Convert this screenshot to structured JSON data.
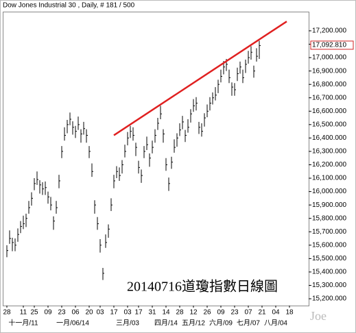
{
  "chart_data": {
    "type": "ohlc",
    "title": "Dow Jones Industrial 30 , Daily, # 181 / 500",
    "annotation": "20140716道瓊指數日線圖",
    "watermark": "Joe",
    "color": "#000000",
    "close": [
      15560,
      15650,
      15620,
      15600,
      15680,
      15740,
      15760,
      15800,
      15880,
      15950,
      16060,
      16090,
      16050,
      16020,
      16030,
      15960,
      15900,
      15780,
      15880,
      16080,
      16300,
      16420,
      16500,
      16540,
      16480,
      16450,
      16500,
      16430,
      16470,
      16420,
      16300,
      16150,
      15900,
      15760,
      15600,
      15390,
      15620,
      15720,
      15900,
      16080,
      16150,
      16120,
      16200,
      16300,
      16400,
      16450,
      16420,
      16330,
      16180,
      16120,
      16300,
      16350,
      16250,
      16330,
      16420,
      16510,
      16580,
      16430,
      16200,
      16060,
      16220,
      16330,
      16400,
      16460,
      16520,
      16420,
      16480,
      16580,
      16640,
      16660,
      16480,
      16450,
      16550,
      16600,
      16660,
      16700,
      16720,
      16800,
      16860,
      16930,
      16950,
      16850,
      16780,
      16760,
      16880,
      16930,
      16850,
      16950,
      17000,
      17040,
      16900,
      17010,
      17090
    ],
    "high": [
      15600,
      15710,
      15655,
      15650,
      15725,
      15780,
      15820,
      15835,
      15930,
      15995,
      16100,
      16150,
      16085,
      16070,
      16075,
      16000,
      15960,
      15815,
      15930,
      16125,
      16340,
      16480,
      16535,
      16590,
      16525,
      16490,
      16560,
      16465,
      16520,
      16465,
      16340,
      16210,
      15935,
      15810,
      15645,
      15430,
      15680,
      15755,
      15950,
      16125,
      16190,
      16180,
      16235,
      16350,
      16445,
      16490,
      16480,
      16365,
      16230,
      16165,
      16340,
      16410,
      16285,
      16380,
      16465,
      16550,
      16640,
      16465,
      16250,
      16105,
      16260,
      16390,
      16435,
      16510,
      16565,
      16460,
      16540,
      16615,
      16690,
      16705,
      16520,
      16510,
      16585,
      16650,
      16705,
      16740,
      16780,
      16835,
      16910,
      16975,
      16990,
      16910,
      16815,
      16810,
      16925,
      16970,
      16910,
      16985,
      17050,
      17085,
      16940,
      17070,
      17125
    ],
    "low": [
      15510,
      15610,
      15555,
      15555,
      15625,
      15690,
      15720,
      15735,
      15835,
      15895,
      16010,
      16050,
      15985,
      15975,
      15975,
      15910,
      15860,
      15715,
      15835,
      16025,
      16250,
      16380,
      16435,
      16495,
      16425,
      16400,
      16460,
      16365,
      16425,
      16365,
      16250,
      16110,
      15835,
      15715,
      15545,
      15340,
      15580,
      15655,
      15855,
      16025,
      16100,
      16080,
      16135,
      16255,
      16345,
      16400,
      16380,
      16265,
      16135,
      16065,
      16250,
      16310,
      16185,
      16285,
      16365,
      16460,
      16540,
      16365,
      16155,
      16005,
      16170,
      16290,
      16335,
      16415,
      16465,
      16370,
      16440,
      16515,
      16595,
      16605,
      16430,
      16410,
      16485,
      16555,
      16605,
      16650,
      16680,
      16735,
      16815,
      16875,
      16900,
      16810,
      16715,
      16715,
      16825,
      16880,
      16810,
      16885,
      16955,
      16985,
      16850,
      16970,
      16990
    ],
    "trendline": {
      "x": [
        39,
        102
      ],
      "y": [
        16420,
        17270
      ],
      "color": "#e02020"
    },
    "last_value": {
      "value": 17092.81,
      "label": "17,092.810",
      "color": "#d02020"
    },
    "xlim": [
      -1,
      110
    ],
    "ylim": [
      15149,
      17343
    ],
    "xticks": [
      {
        "value": 0,
        "label": "28"
      },
      {
        "value": 6,
        "label": "11"
      },
      {
        "value": 10,
        "label": "25"
      },
      {
        "value": 15,
        "label": "09"
      },
      {
        "value": 20,
        "label": "23"
      },
      {
        "value": 25,
        "label": "06"
      },
      {
        "value": 30,
        "label": "20"
      },
      {
        "value": 34,
        "label": "03"
      },
      {
        "value": 39,
        "label": "17"
      },
      {
        "value": 44,
        "label": "03"
      },
      {
        "value": 48,
        "label": "17"
      },
      {
        "value": 53,
        "label": "31"
      },
      {
        "value": 58,
        "label": "14"
      },
      {
        "value": 63,
        "label": "28"
      },
      {
        "value": 68,
        "label": "12"
      },
      {
        "value": 73,
        "label": "26"
      },
      {
        "value": 78,
        "label": "09"
      },
      {
        "value": 83,
        "label": "23"
      },
      {
        "value": 88,
        "label": "07"
      },
      {
        "value": 93,
        "label": "21"
      },
      {
        "value": 98,
        "label": "04"
      },
      {
        "value": 103,
        "label": "18"
      }
    ],
    "xticks2": [
      {
        "value": 6,
        "label": "十一月/11"
      },
      {
        "value": 24,
        "label": "一月/06/14"
      },
      {
        "value": 44,
        "label": "三月/03"
      },
      {
        "value": 58,
        "label": "四月/14"
      },
      {
        "value": 68,
        "label": "五月/12"
      },
      {
        "value": 78,
        "label": "六月/09"
      },
      {
        "value": 88,
        "label": "七月/07"
      },
      {
        "value": 98,
        "label": "八月/04"
      }
    ],
    "yticks": [
      {
        "value": 15200,
        "label": "15,200.000"
      },
      {
        "value": 15300,
        "label": "15,300.000"
      },
      {
        "value": 15400,
        "label": "15,400.000"
      },
      {
        "value": 15500,
        "label": "15,500.000"
      },
      {
        "value": 15600,
        "label": "15,600.000"
      },
      {
        "value": 15700,
        "label": "15,700.000"
      },
      {
        "value": 15800,
        "label": "15,800.000"
      },
      {
        "value": 15900,
        "label": "15,900.000"
      },
      {
        "value": 16000,
        "label": "16,000.000"
      },
      {
        "value": 16100,
        "label": "16,100.000"
      },
      {
        "value": 16200,
        "label": "16,200.000"
      },
      {
        "value": 16300,
        "label": "16,300.000"
      },
      {
        "value": 16400,
        "label": "16,400.000"
      },
      {
        "value": 16500,
        "label": "16,500.000"
      },
      {
        "value": 16600,
        "label": "16,600.000"
      },
      {
        "value": 16700,
        "label": "16,700.000"
      },
      {
        "value": 16800,
        "label": "16,800.000"
      },
      {
        "value": 16900,
        "label": "16,900.000"
      },
      {
        "value": 17000,
        "label": "17,000.000"
      },
      {
        "value": 17100,
        "label": "17,100.000"
      },
      {
        "value": 17200,
        "label": "17,200.000"
      }
    ]
  }
}
